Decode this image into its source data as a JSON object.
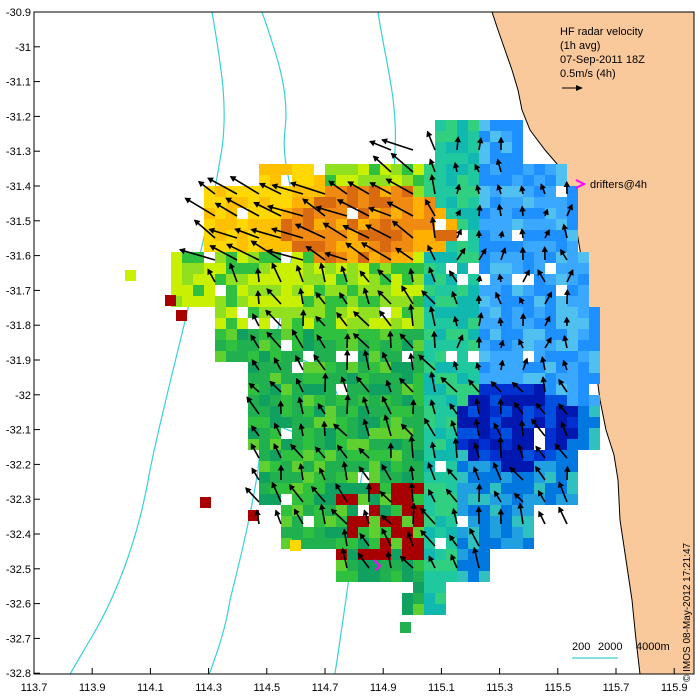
{
  "title_block": {
    "line1": "HF radar velocity",
    "line2": "(1h avg)",
    "line3": "07-Sep-2011 18Z",
    "scale_label": "0.5m/s (4h)"
  },
  "drifters_label": "drifters@4h",
  "depth_legend": [
    "200",
    "2000",
    "4000m"
  ],
  "credit": "© IMOS 08-May-2012 17:21:47",
  "axes": {
    "x_ticks": [
      "113.7",
      "113.9",
      "114.1",
      "114.3",
      "114.5",
      "114.7",
      "114.9",
      "115.1",
      "115.3",
      "115.5",
      "115.7",
      "115.9"
    ],
    "y_ticks": [
      "-30.9",
      "-31",
      "-31.1",
      "-31.2",
      "-31.3",
      "-31.4",
      "-31.5",
      "-31.6",
      "-31.7",
      "-31.8",
      "-31.9",
      "-32",
      "-32.1",
      "-32.2",
      "-32.3",
      "-32.4",
      "-32.5",
      "-32.6",
      "-32.7",
      "-32.8"
    ]
  },
  "colors": {
    "land": "#f9c89b",
    "contour": "#3ad0d8",
    "drifter": "#ff00ff"
  }
}
